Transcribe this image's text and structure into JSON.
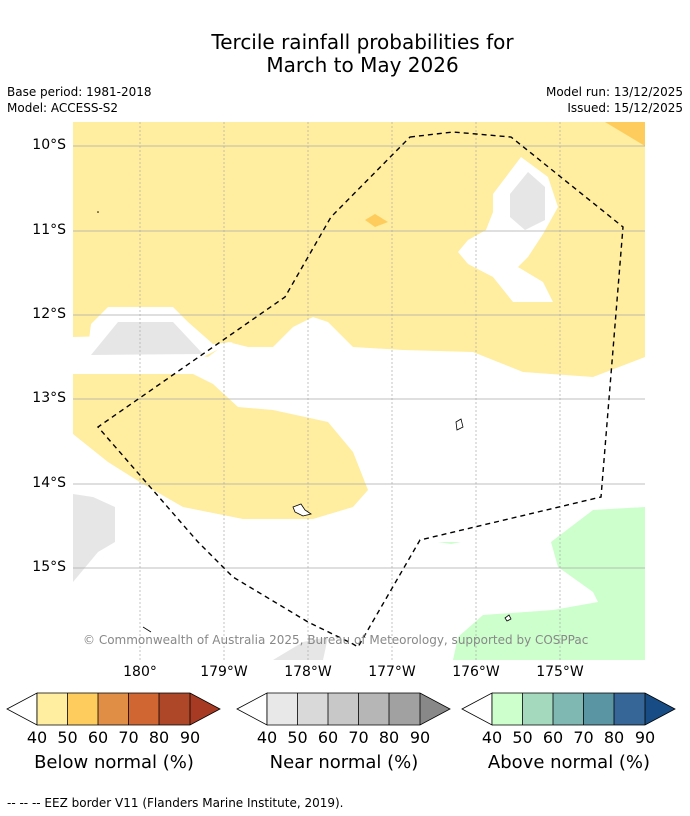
{
  "title_line1": "Tercile rainfall probabilities for",
  "title_line2": "March to May 2026",
  "meta_left": [
    "Base period: 1981-2018",
    "Model: ACCESS-S2"
  ],
  "meta_right": [
    "Model run: 13/12/2025",
    "Issued: 15/12/2025"
  ],
  "lat_labels": [
    "10°S",
    "11°S",
    "12°S",
    "13°S",
    "14°S",
    "15°S"
  ],
  "lon_labels": [
    "180°",
    "179°W",
    "178°W",
    "177°W",
    "176°W",
    "175°W"
  ],
  "copyright": "© Commonwealth of Australia 2025, Bureau of Meteorology, supported by COSPPac",
  "colorbars": [
    {
      "label": "Below normal (%)",
      "colors": [
        "#ffeda0",
        "#fecc5c",
        "#e08e45",
        "#d06632",
        "#ae4727",
        "#a63a23"
      ]
    },
    {
      "label": "Near normal (%)",
      "colors": [
        "#e8e8e8",
        "#d9d9d9",
        "#c8c8c8",
        "#b6b6b6",
        "#a1a1a1",
        "#888888"
      ]
    },
    {
      "label": "Above normal (%)",
      "colors": [
        "#ccffcc",
        "#a4d9be",
        "#7fb7b3",
        "#5a95a3",
        "#356697",
        "#174c85"
      ]
    }
  ],
  "colorbar_ticks": [
    "40",
    "50",
    "60",
    "70",
    "80",
    "90"
  ],
  "footer": "--  --  -- EEZ border V11 (Flanders Marine Institute, 2019)."
}
